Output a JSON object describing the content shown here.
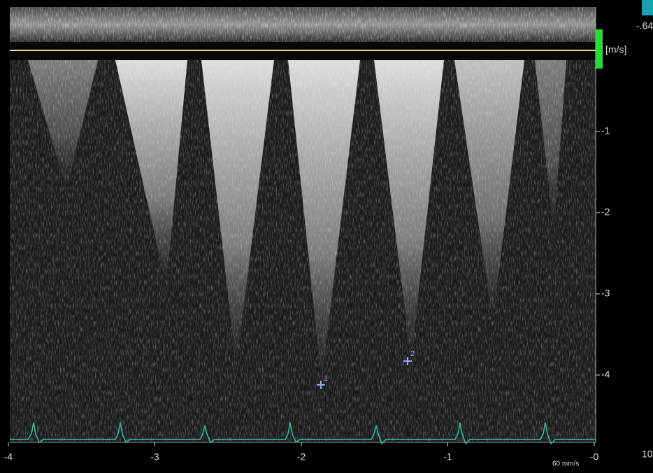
{
  "top_value": "-.64",
  "scale_label": "[m/s]",
  "velocity_ticks": [
    -1,
    -2,
    -3,
    -4
  ],
  "time_ticks": [
    -4,
    -3,
    -2,
    -1,
    {
      "value": 0,
      "label": "-0"
    }
  ],
  "sweep_speed": "60 mm/s",
  "markers": [
    "1",
    "2"
  ],
  "corner_label": "10"
}
